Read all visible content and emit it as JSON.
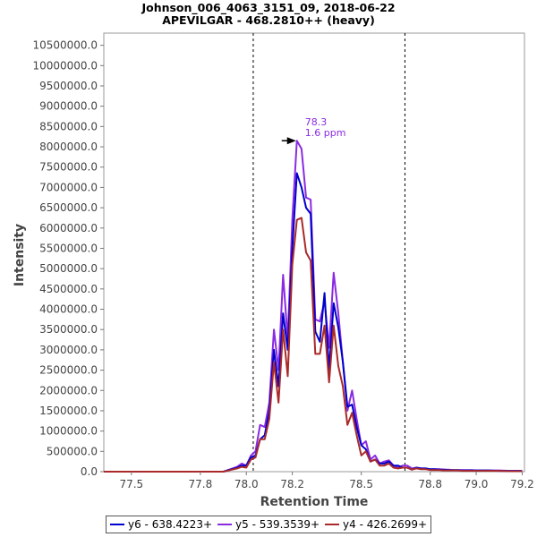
{
  "chart_data": {
    "type": "line",
    "title": "Johnson_006_4063_3151_09, 2018-06-22",
    "subtitle": "APEVILGAR - 468.2810++ (heavy)",
    "xlabel": "Retention Time",
    "ylabel": "Intensity",
    "xlim": [
      77.38,
      79.21
    ],
    "ylim": [
      0,
      10800000
    ],
    "xticks": [
      77.5,
      77.8,
      78.0,
      78.2,
      78.5,
      78.8,
      79.0,
      79.2
    ],
    "xtick_labels": [
      "77.5",
      "77.8",
      "78.0",
      "78.2",
      "78.5",
      "78.8",
      "79.0",
      "79.2"
    ],
    "yticks": [
      0,
      500000,
      1000000,
      1500000,
      2000000,
      2500000,
      3000000,
      3500000,
      4000000,
      4500000,
      5000000,
      5500000,
      6000000,
      6500000,
      7000000,
      7500000,
      8000000,
      8500000,
      9000000,
      9500000,
      10000000,
      10500000
    ],
    "ytick_labels": [
      "0.0",
      "500000.0",
      "1000000.0",
      "1500000.0",
      "2000000.0",
      "2500000.0",
      "3000000.0",
      "3500000.0",
      "4000000.0",
      "4500000.0",
      "5000000.0",
      "5500000.0",
      "6000000.0",
      "6500000.0",
      "7000000.0",
      "7500000.0",
      "8000000.0",
      "8500000.0",
      "9000000.0",
      "9500000.0",
      "10000000.0",
      "10500000.0"
    ],
    "vlines": [
      78.03,
      78.69
    ],
    "grid": false,
    "legend_position": "bottom",
    "annotation": {
      "x": 78.22,
      "y": 8150000,
      "text_lines": [
        "78.3",
        "1.6 ppm"
      ],
      "color": "#8a2be2"
    },
    "series": [
      {
        "name": "y6 - 638.4223+",
        "color": "#0000cc",
        "x": [
          77.38,
          77.9,
          77.93,
          77.96,
          77.98,
          78.0,
          78.02,
          78.04,
          78.06,
          78.08,
          78.1,
          78.12,
          78.14,
          78.16,
          78.18,
          78.2,
          78.22,
          78.24,
          78.26,
          78.28,
          78.3,
          78.32,
          78.34,
          78.36,
          78.38,
          78.4,
          78.42,
          78.44,
          78.46,
          78.48,
          78.5,
          78.52,
          78.54,
          78.56,
          78.58,
          78.6,
          78.62,
          78.64,
          78.66,
          78.68,
          78.7,
          78.72,
          78.74,
          78.76,
          78.78,
          78.8,
          78.82,
          78.84,
          78.86,
          78.88,
          78.9,
          78.92,
          78.94,
          78.96,
          78.98,
          79.0,
          79.05,
          79.1,
          79.15,
          79.2
        ],
        "y": [
          0,
          0,
          50000,
          100000,
          150000,
          150000,
          350000,
          400000,
          800000,
          900000,
          1500000,
          3000000,
          2100000,
          3900000,
          3000000,
          5500000,
          7350000,
          7000000,
          6500000,
          6350000,
          3450000,
          3200000,
          4400000,
          2500000,
          4150000,
          3550000,
          2700000,
          1600000,
          1650000,
          1100000,
          650000,
          550000,
          250000,
          300000,
          200000,
          200000,
          250000,
          150000,
          150000,
          100000,
          100000,
          50000,
          100000,
          80000,
          80000,
          60000,
          60000,
          50000,
          50000,
          40000,
          40000,
          40000,
          30000,
          30000,
          30000,
          30000,
          30000,
          20000,
          20000,
          20000
        ]
      },
      {
        "name": "y5 - 539.3539+",
        "color": "#8a2be2",
        "x": [
          77.38,
          77.9,
          77.93,
          77.96,
          77.98,
          78.0,
          78.02,
          78.04,
          78.06,
          78.08,
          78.1,
          78.12,
          78.14,
          78.16,
          78.18,
          78.2,
          78.22,
          78.24,
          78.26,
          78.28,
          78.3,
          78.32,
          78.34,
          78.36,
          78.38,
          78.4,
          78.42,
          78.44,
          78.46,
          78.48,
          78.5,
          78.52,
          78.54,
          78.56,
          78.58,
          78.6,
          78.62,
          78.64,
          78.66,
          78.68,
          78.7,
          78.72,
          78.74,
          78.76,
          78.78,
          78.8,
          78.82,
          78.84,
          78.86,
          78.88,
          78.9,
          78.92,
          78.94,
          78.96,
          78.98,
          79.0,
          79.05,
          79.1,
          79.15,
          79.2
        ],
        "y": [
          0,
          0,
          60000,
          120000,
          200000,
          150000,
          400000,
          500000,
          1150000,
          1100000,
          1700000,
          3500000,
          2500000,
          4850000,
          3250000,
          6200000,
          8150000,
          7950000,
          6750000,
          6700000,
          3750000,
          3700000,
          4200000,
          3050000,
          4900000,
          3900000,
          2700000,
          1500000,
          2000000,
          1300000,
          650000,
          750000,
          300000,
          400000,
          200000,
          250000,
          280000,
          150000,
          100000,
          150000,
          150000,
          80000,
          100000,
          80000,
          80000,
          60000,
          60000,
          60000,
          50000,
          50000,
          40000,
          40000,
          40000,
          40000,
          40000,
          30000,
          30000,
          30000,
          20000,
          20000
        ]
      },
      {
        "name": "y4 - 426.2699+",
        "color": "#aa2a2a",
        "x": [
          77.38,
          77.9,
          77.93,
          77.96,
          77.98,
          78.0,
          78.02,
          78.04,
          78.06,
          78.08,
          78.1,
          78.12,
          78.14,
          78.16,
          78.18,
          78.2,
          78.22,
          78.24,
          78.26,
          78.28,
          78.3,
          78.32,
          78.34,
          78.36,
          78.38,
          78.4,
          78.42,
          78.44,
          78.46,
          78.48,
          78.5,
          78.52,
          78.54,
          78.56,
          78.58,
          78.6,
          78.62,
          78.64,
          78.66,
          78.68,
          78.7,
          78.72,
          78.74,
          78.76,
          78.78,
          78.8,
          78.82,
          78.84,
          78.86,
          78.88,
          78.9,
          78.92,
          78.94,
          78.96,
          78.98,
          79.0,
          79.05,
          79.1,
          79.15,
          79.2
        ],
        "y": [
          0,
          0,
          40000,
          80000,
          120000,
          100000,
          300000,
          350000,
          800000,
          800000,
          1300000,
          2700000,
          1700000,
          3500000,
          2350000,
          5100000,
          6200000,
          6250000,
          5400000,
          5200000,
          2900000,
          2900000,
          3600000,
          2200000,
          3600000,
          2600000,
          2100000,
          1150000,
          1450000,
          900000,
          400000,
          500000,
          250000,
          300000,
          150000,
          150000,
          200000,
          100000,
          80000,
          100000,
          100000,
          50000,
          80000,
          60000,
          60000,
          40000,
          40000,
          40000,
          30000,
          30000,
          30000,
          30000,
          20000,
          20000,
          20000,
          20000,
          20000,
          20000,
          10000,
          10000
        ]
      }
    ]
  }
}
